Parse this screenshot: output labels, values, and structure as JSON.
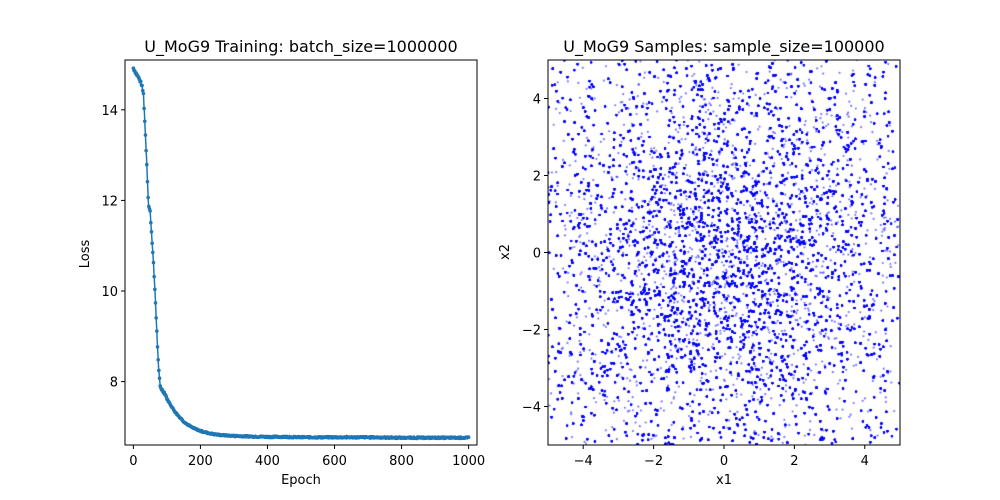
{
  "chart_data": [
    {
      "type": "line",
      "title": "U_MoG9 Training: batch_size=1000000",
      "xlabel": "Epoch",
      "ylabel": "Loss",
      "xlim": [
        -25,
        1025
      ],
      "ylim": [
        6.6,
        15.1
      ],
      "xticks": [
        0,
        200,
        400,
        600,
        800,
        1000
      ],
      "yticks": [
        8,
        10,
        12,
        14
      ],
      "grid": false,
      "color": "#1f77b4",
      "marker": "dot",
      "series": [
        {
          "points": [
            [
              0,
              14.92
            ],
            [
              5,
              14.85
            ],
            [
              10,
              14.78
            ],
            [
              15,
              14.72
            ],
            [
              20,
              14.64
            ],
            [
              25,
              14.55
            ],
            [
              30,
              14.35
            ],
            [
              35,
              13.6
            ],
            [
              40,
              12.8
            ],
            [
              45,
              11.9
            ],
            [
              50,
              11.75
            ],
            [
              55,
              11.2
            ],
            [
              60,
              10.6
            ],
            [
              65,
              9.9
            ],
            [
              70,
              9.1
            ],
            [
              75,
              8.3
            ],
            [
              80,
              7.9
            ],
            [
              85,
              7.82
            ],
            [
              90,
              7.78
            ],
            [
              95,
              7.73
            ],
            [
              100,
              7.62
            ],
            [
              110,
              7.5
            ],
            [
              120,
              7.38
            ],
            [
              130,
              7.28
            ],
            [
              140,
              7.2
            ],
            [
              150,
              7.12
            ],
            [
              160,
              7.06
            ],
            [
              170,
              7.01
            ],
            [
              180,
              6.97
            ],
            [
              190,
              6.94
            ],
            [
              200,
              6.91
            ],
            [
              220,
              6.87
            ],
            [
              240,
              6.84
            ],
            [
              260,
              6.82
            ],
            [
              280,
              6.81
            ],
            [
              300,
              6.8
            ],
            [
              350,
              6.79
            ],
            [
              400,
              6.78
            ],
            [
              450,
              6.78
            ],
            [
              500,
              6.77
            ],
            [
              600,
              6.77
            ],
            [
              700,
              6.77
            ],
            [
              800,
              6.76
            ],
            [
              900,
              6.76
            ],
            [
              1000,
              6.76
            ]
          ]
        }
      ]
    },
    {
      "type": "scatter",
      "title": "U_MoG9 Samples: sample_size=100000",
      "xlabel": "x1",
      "ylabel": "x2",
      "xlim": [
        -5,
        5
      ],
      "ylim": [
        -5,
        5
      ],
      "xticks": [
        -4,
        -2,
        0,
        2,
        4
      ],
      "yticks": [
        -4,
        -2,
        0,
        2,
        4
      ],
      "grid": false,
      "color": "#0000ff",
      "sample_size": 100000,
      "distribution": "dense cloud of points filling the full square, concentrated near (0, 0)"
    }
  ]
}
